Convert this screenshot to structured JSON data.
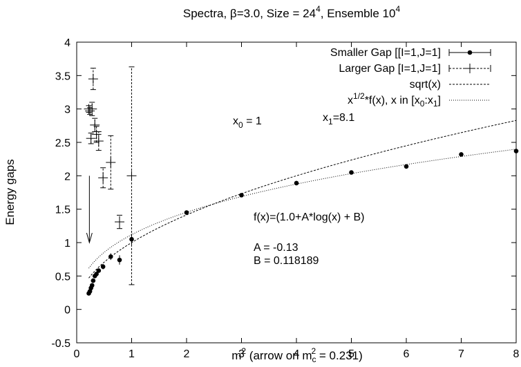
{
  "chart_data": {
    "type": "scatter",
    "title_parts": [
      "Spectra, ",
      "β",
      "=3.0, Size = 24",
      "4",
      ", Ensemble 10",
      "4"
    ],
    "xlabel_parts": [
      "m",
      "2",
      " (arrow on m",
      "c",
      "2",
      " = 0.231)"
    ],
    "ylabel": "Energy gaps",
    "xlim": [
      0,
      8
    ],
    "ylim": [
      -0.5,
      4
    ],
    "x_ticks": [
      0,
      1,
      2,
      3,
      4,
      5,
      6,
      7,
      8
    ],
    "y_ticks": [
      -0.5,
      0,
      0.5,
      1,
      1.5,
      2,
      2.5,
      3,
      3.5,
      4
    ],
    "x_tick_labels": [
      "0",
      "1",
      "2",
      "3",
      "4",
      "5",
      "6",
      "7",
      "8"
    ],
    "y_tick_labels": [
      "-0.5",
      "0",
      "0.5",
      "1",
      "1.5",
      "2",
      "2.5",
      "3",
      "3.5",
      "4"
    ],
    "grid": false,
    "legend_position": "top-right",
    "legend": {
      "smaller": "Smaller Gap [[I=1,J=1]",
      "larger": "Larger Gap [I=1,J=1]",
      "sqrt": "sqrt(x)",
      "fit_parts": [
        "x",
        "1/2",
        "*f(x), x in [x",
        "0",
        ":x",
        "1",
        "]"
      ]
    },
    "series": [
      {
        "name": "Smaller Gap [[I=1,J=1]",
        "style": "points-with-xerror",
        "x": [
          0.22,
          0.24,
          0.26,
          0.28,
          0.3,
          0.33,
          0.36,
          0.4,
          0.48,
          0.62,
          0.78,
          1.0,
          2,
          3,
          4,
          5,
          6,
          7,
          8
        ],
        "y": [
          0.24,
          0.27,
          0.32,
          0.36,
          0.43,
          0.5,
          0.53,
          0.58,
          0.64,
          0.79,
          0.74,
          1.05,
          1.45,
          1.71,
          1.89,
          2.05,
          2.14,
          2.32,
          2.37
        ],
        "y_err": [
          0.03,
          0.03,
          0.03,
          0.03,
          0.03,
          0.03,
          0.03,
          0.03,
          0.04,
          0.05,
          0.07,
          0.08,
          0.02,
          0.02,
          0.02,
          0.02,
          0.02,
          0.02,
          0.02
        ]
      },
      {
        "name": "Larger Gap [I=1,J=1]",
        "style": "plus-with-dashed-error",
        "x": [
          0.22,
          0.24,
          0.26,
          0.28,
          0.3,
          0.33,
          0.36,
          0.4,
          0.48,
          0.62,
          0.78,
          1.0
        ],
        "y": [
          3.0,
          2.97,
          2.56,
          3.0,
          3.45,
          2.76,
          2.62,
          2.52,
          1.97,
          2.2,
          1.31,
          2.0
        ],
        "y_err": [
          0.05,
          0.05,
          0.08,
          0.1,
          0.16,
          0.1,
          0.12,
          0.14,
          0.15,
          0.4,
          0.1,
          1.63
        ]
      }
    ],
    "curves": [
      {
        "name": "sqrt(x)",
        "formula": "sqrt(x)",
        "x_range": [
          0.22,
          8
        ],
        "style": "dashed"
      },
      {
        "name": "x^(1/2)*f(x)",
        "formula": "sqrt(x)*(1.0 + A*log(x) + B)",
        "x_range": [
          0.22,
          8
        ],
        "style": "dotted"
      }
    ],
    "arrow": {
      "x": 0.231,
      "y_from": 2.0,
      "y_to": 1.0
    },
    "annotations": {
      "x0_parts": [
        "x",
        "0",
        " = 1"
      ],
      "x1_parts": [
        "x",
        "1",
        "=8.1"
      ],
      "formula": "f(x)=(1.0+A*log(x) + B)",
      "A": "A = -0.13",
      "B": "B = 0.118189"
    },
    "fit_params": {
      "A": -0.13,
      "B": 0.118189,
      "x0": 1,
      "x1": 8.1
    }
  }
}
